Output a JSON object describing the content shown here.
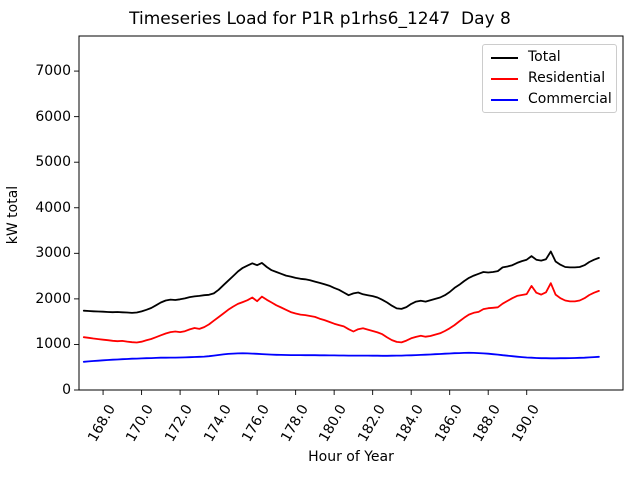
{
  "chart_data": {
    "type": "line",
    "title": "Timeseries Load for P1R p1rhs6_1247  Day 8",
    "xlabel": "Hour of Year",
    "ylabel": "kW total",
    "grid": false,
    "legend_position": "upper-right",
    "xlim": [
      166.75,
      195.0
    ],
    "ylim": [
      0,
      7770
    ],
    "yticks": [
      0,
      1000,
      2000,
      3000,
      4000,
      5000,
      6000,
      7000
    ],
    "ytick_labels": [
      "0",
      "1000",
      "2000",
      "3000",
      "4000",
      "5000",
      "6000",
      "7000"
    ],
    "xticks": [
      168,
      170,
      172,
      174,
      176,
      178,
      180,
      182,
      184,
      186,
      188,
      190
    ],
    "xtick_labels": [
      "168.0",
      "170.0",
      "172.0",
      "174.0",
      "176.0",
      "178.0",
      "180.0",
      "182.0",
      "184.0",
      "186.0",
      "188.0",
      "190.0"
    ],
    "xtick_rotation_deg": -60,
    "x": [
      167.0,
      167.25,
      167.5,
      167.75,
      168.0,
      168.25,
      168.5,
      168.75,
      169.0,
      169.25,
      169.5,
      169.75,
      170.0,
      170.25,
      170.5,
      170.75,
      171.0,
      171.25,
      171.5,
      171.75,
      172.0,
      172.25,
      172.5,
      172.75,
      173.0,
      173.25,
      173.5,
      173.75,
      174.0,
      174.25,
      174.5,
      174.75,
      175.0,
      175.25,
      175.5,
      175.75,
      176.0,
      176.25,
      176.5,
      176.75,
      177.0,
      177.25,
      177.5,
      177.75,
      178.0,
      178.25,
      178.5,
      178.75,
      179.0,
      179.25,
      179.5,
      179.75,
      180.0,
      180.25,
      180.5,
      180.75,
      181.0,
      181.25,
      181.5,
      181.75,
      182.0,
      182.25,
      182.5,
      182.75,
      183.0,
      183.25,
      183.5,
      183.75,
      184.0,
      184.25,
      184.5,
      184.75,
      185.0,
      185.25,
      185.5,
      185.75,
      186.0,
      186.25,
      186.5,
      186.75,
      187.0,
      187.25,
      187.5,
      187.75,
      188.0,
      188.25,
      188.5,
      188.75,
      189.0,
      189.25,
      189.5,
      189.75,
      190.0,
      190.25,
      190.5,
      190.75,
      191.0,
      191.25,
      191.5,
      191.75,
      192.0,
      192.25,
      192.5,
      192.75,
      193.0,
      193.25,
      193.5,
      193.75
    ],
    "series": [
      {
        "name": "Total",
        "color": "#000000",
        "values": [
          1740,
          1735,
          1728,
          1722,
          1718,
          1712,
          1708,
          1712,
          1706,
          1700,
          1692,
          1700,
          1725,
          1760,
          1800,
          1860,
          1920,
          1965,
          1985,
          1975,
          1990,
          2010,
          2040,
          2055,
          2065,
          2080,
          2090,
          2120,
          2200,
          2300,
          2400,
          2500,
          2600,
          2680,
          2730,
          2780,
          2740,
          2790,
          2700,
          2630,
          2590,
          2550,
          2510,
          2490,
          2460,
          2440,
          2430,
          2410,
          2380,
          2350,
          2320,
          2290,
          2240,
          2200,
          2140,
          2080,
          2120,
          2140,
          2100,
          2080,
          2060,
          2030,
          1980,
          1920,
          1850,
          1790,
          1780,
          1820,
          1890,
          1940,
          1960,
          1940,
          1970,
          2000,
          2030,
          2080,
          2150,
          2240,
          2310,
          2390,
          2460,
          2510,
          2550,
          2590,
          2580,
          2590,
          2610,
          2690,
          2710,
          2740,
          2790,
          2830,
          2860,
          2940,
          2860,
          2840,
          2870,
          3040,
          2820,
          2750,
          2700,
          2690,
          2690,
          2700,
          2740,
          2810,
          2860,
          2900
        ]
      },
      {
        "name": "Residential",
        "color": "#ff0000",
        "values": [
          1160,
          1145,
          1130,
          1118,
          1105,
          1092,
          1080,
          1072,
          1078,
          1062,
          1050,
          1042,
          1060,
          1090,
          1120,
          1160,
          1200,
          1240,
          1270,
          1285,
          1270,
          1290,
          1330,
          1360,
          1340,
          1380,
          1440,
          1520,
          1600,
          1680,
          1760,
          1830,
          1890,
          1930,
          1970,
          2030,
          1950,
          2050,
          1980,
          1920,
          1860,
          1810,
          1760,
          1710,
          1680,
          1655,
          1645,
          1625,
          1605,
          1565,
          1535,
          1495,
          1455,
          1425,
          1395,
          1335,
          1285,
          1335,
          1355,
          1325,
          1295,
          1265,
          1225,
          1155,
          1095,
          1055,
          1045,
          1085,
          1135,
          1165,
          1190,
          1170,
          1185,
          1215,
          1245,
          1295,
          1355,
          1425,
          1505,
          1585,
          1655,
          1695,
          1715,
          1775,
          1795,
          1805,
          1815,
          1895,
          1955,
          2015,
          2065,
          2085,
          2105,
          2285,
          2135,
          2095,
          2145,
          2345,
          2095,
          2015,
          1965,
          1945,
          1945,
          1965,
          2015,
          2085,
          2135,
          2175
        ]
      },
      {
        "name": "Commercial",
        "color": "#0000ff",
        "values": [
          620,
          628,
          636,
          644,
          652,
          658,
          664,
          670,
          676,
          681,
          686,
          690,
          694,
          698,
          701,
          704,
          708,
          710,
          712,
          711,
          713,
          716,
          720,
          724,
          728,
          734,
          742,
          754,
          768,
          782,
          793,
          800,
          804,
          806,
          804,
          800,
          794,
          788,
          782,
          777,
          773,
          770,
          768,
          767,
          766,
          765,
          764,
          764,
          763,
          762,
          761,
          760,
          759,
          758,
          757,
          756,
          756,
          755,
          755,
          754,
          753,
          752,
          751,
          751,
          752,
          754,
          756,
          759,
          762,
          766,
          770,
          775,
          780,
          785,
          790,
          796,
          802,
          807,
          811,
          814,
          816,
          814,
          810,
          804,
          796,
          786,
          776,
          764,
          753,
          742,
          732,
          723,
          714,
          708,
          703,
          699,
          697,
          696,
          696,
          697,
          698,
          700,
          703,
          706,
          710,
          716,
          722,
          728
        ]
      }
    ]
  }
}
